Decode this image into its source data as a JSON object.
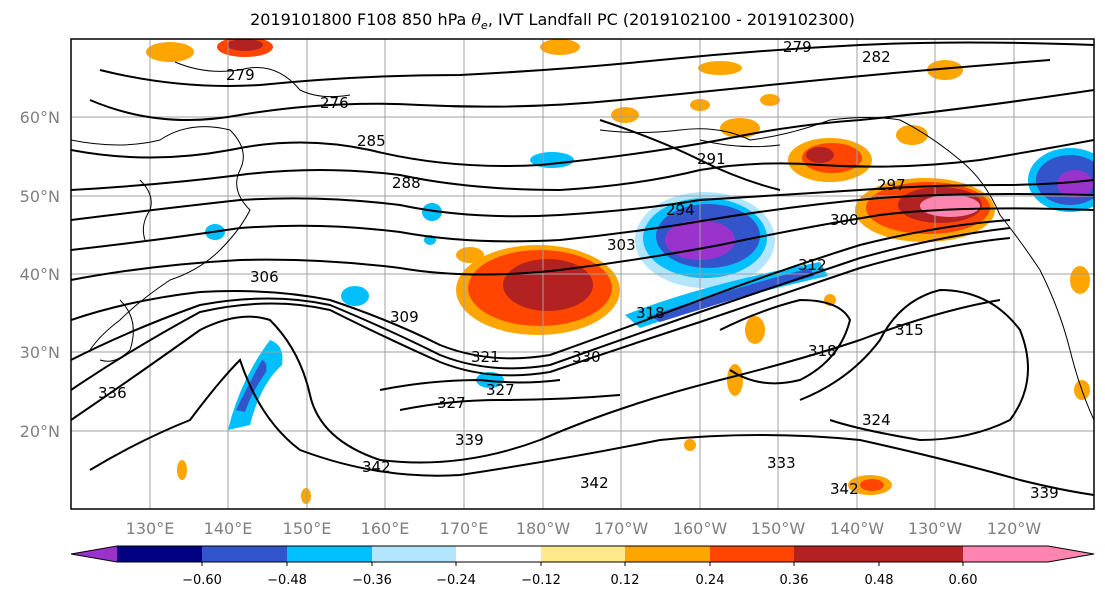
{
  "title": {
    "prefix": "2019101800 F108 850 hPa ",
    "theta_symbol": "θ",
    "theta_subscript": "e",
    "suffix": ", IVT Landfall PC (2019102100 - 2019102300)"
  },
  "lat_labels": [
    "60°N",
    "50°N",
    "40°N",
    "30°N",
    "20°N"
  ],
  "lon_labels": [
    "130°E",
    "140°E",
    "150°E",
    "160°E",
    "170°E",
    "180°W",
    "170°W",
    "160°W",
    "150°W",
    "140°W",
    "130°W",
    "120°W"
  ],
  "colorbar": {
    "colors": [
      "#9933cc",
      "#000080",
      "#3355cc",
      "#00bfff",
      "#b3e5ff",
      "#ffffff",
      "#ffe98a",
      "#ffa500",
      "#ff4500",
      "#b22222",
      "#ff85b0"
    ],
    "tick_labels": [
      "−0.60",
      "−0.48",
      "−0.36",
      "−0.24",
      "−0.12",
      "0.12",
      "0.24",
      "0.36",
      "0.48",
      "0.60"
    ]
  },
  "contour_labels": [
    "279",
    "282",
    "279",
    "276",
    "285",
    "288",
    "291",
    "294",
    "297",
    "300",
    "303",
    "306",
    "309",
    "312",
    "315",
    "318",
    "318",
    "321",
    "324",
    "327",
    "327",
    "330",
    "333",
    "336",
    "339",
    "339",
    "342",
    "342",
    "342"
  ]
}
